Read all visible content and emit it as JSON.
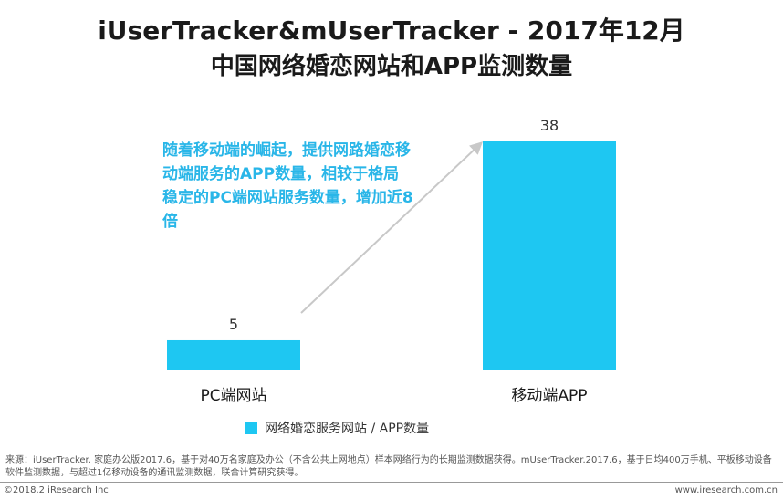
{
  "title_line1": "iUserTracker&mUserTracker - 2017年12月",
  "title_line2": "中国网络婚恋网站和APP监测数量",
  "annotation": "随着移动端的崛起，提供网路婚恋移动端服务的APP数量，相较于格局稳定的PC端网站服务数量，增加近8倍",
  "chart_data": {
    "type": "bar",
    "categories": [
      "PC端网站",
      "移动端APP"
    ],
    "series": [
      {
        "name": "网络婚恋服务网站 / APP数量",
        "values": [
          5,
          38
        ]
      }
    ],
    "ylim": [
      0,
      38
    ],
    "grid": false,
    "legend_position": "bottom"
  },
  "colors": {
    "bar": "#1ec7f2",
    "annotation": "#29b6e8",
    "arrow": "#c8c8c8"
  },
  "footnote": "来源：iUserTracker. 家庭办公版2017.6，基于对40万名家庭及办公（不含公共上网地点）样本网络行为的长期监测数据获得。mUserTracker.2017.6，基于日均400万手机、平板移动设备软件监测数据，与超过1亿移动设备的通讯监测数据，联合计算研究获得。",
  "copyright": "©2018.2 iResearch Inc",
  "website": "www.iresearch.com.cn"
}
